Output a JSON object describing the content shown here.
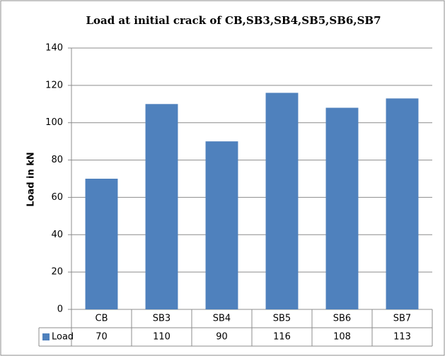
{
  "chart_data": {
    "type": "bar",
    "title": "Load at initial crack of CB,SB3,SB4,SB5,SB6,SB7",
    "y_label": "Load in kN",
    "categories": [
      "CB",
      "SB3",
      "SB4",
      "SB5",
      "SB6",
      "SB7"
    ],
    "series": [
      {
        "name": "Load",
        "color": "#4f81bd",
        "values": [
          70,
          110,
          90,
          116,
          108,
          113
        ]
      }
    ],
    "ylim": [
      0,
      140
    ],
    "yticks": [
      0,
      20,
      40,
      60,
      80,
      100,
      120,
      140
    ],
    "grid": true
  }
}
